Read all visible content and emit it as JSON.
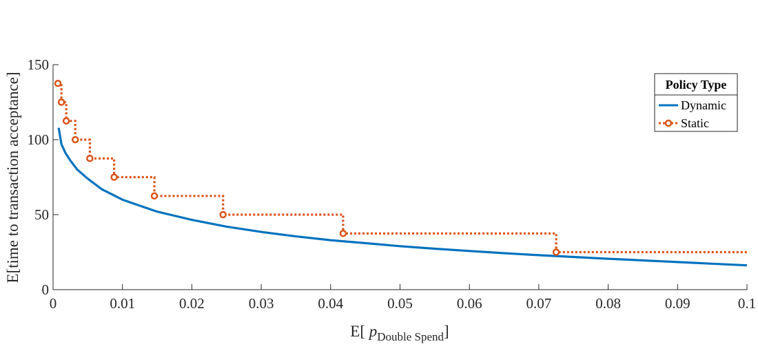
{
  "chart_data": {
    "type": "line",
    "xlabel_prefix": "E[ ",
    "xlabel_var": "p",
    "xlabel_sub": "Double Spend",
    "xlabel_suffix": "]",
    "ylabel": "E[time to transaction acceptance]",
    "xlim": [
      0,
      0.1
    ],
    "ylim": [
      0,
      150
    ],
    "x_ticks": [
      0,
      0.01,
      0.02,
      0.03,
      0.04,
      0.05,
      0.06,
      0.07,
      0.08,
      0.09,
      0.1
    ],
    "x_tick_labels": [
      "0",
      "0.01",
      "0.02",
      "0.03",
      "0.04",
      "0.05",
      "0.06",
      "0.07",
      "0.08",
      "0.09",
      "0.1"
    ],
    "y_ticks": [
      0,
      50,
      100,
      150
    ],
    "y_tick_labels": [
      "0",
      "50",
      "100",
      "150"
    ],
    "grid": false,
    "legend": {
      "title": "Policy Type",
      "position": "top-right",
      "entries": [
        "Dynamic",
        "Static"
      ]
    },
    "series": [
      {
        "name": "Dynamic",
        "style": "solid",
        "color": "#0072BD",
        "points": [
          [
            0.0008,
            108
          ],
          [
            0.0012,
            97
          ],
          [
            0.0018,
            91
          ],
          [
            0.0025,
            86
          ],
          [
            0.0035,
            80
          ],
          [
            0.005,
            74
          ],
          [
            0.007,
            67
          ],
          [
            0.01,
            60
          ],
          [
            0.015,
            52
          ],
          [
            0.02,
            46.5
          ],
          [
            0.025,
            42
          ],
          [
            0.03,
            38.5
          ],
          [
            0.035,
            35.5
          ],
          [
            0.04,
            33
          ],
          [
            0.045,
            31
          ],
          [
            0.05,
            29
          ],
          [
            0.055,
            27.3
          ],
          [
            0.06,
            25.8
          ],
          [
            0.065,
            24.3
          ],
          [
            0.07,
            23
          ],
          [
            0.075,
            21.8
          ],
          [
            0.08,
            20.6
          ],
          [
            0.085,
            19.5
          ],
          [
            0.09,
            18.4
          ],
          [
            0.095,
            17.3
          ],
          [
            0.1,
            16.2
          ]
        ]
      },
      {
        "name": "Static",
        "style": "dotted-step",
        "color": "#D95319",
        "points": [
          [
            0.0007,
            137.5
          ],
          [
            0.0012,
            125
          ],
          [
            0.0019,
            112.5
          ],
          [
            0.0032,
            100
          ],
          [
            0.0053,
            87.5
          ],
          [
            0.0088,
            75
          ],
          [
            0.0146,
            62.5
          ],
          [
            0.0245,
            50
          ],
          [
            0.0418,
            37.5
          ],
          [
            0.0725,
            25
          ]
        ],
        "x_end": 0.1
      }
    ]
  }
}
